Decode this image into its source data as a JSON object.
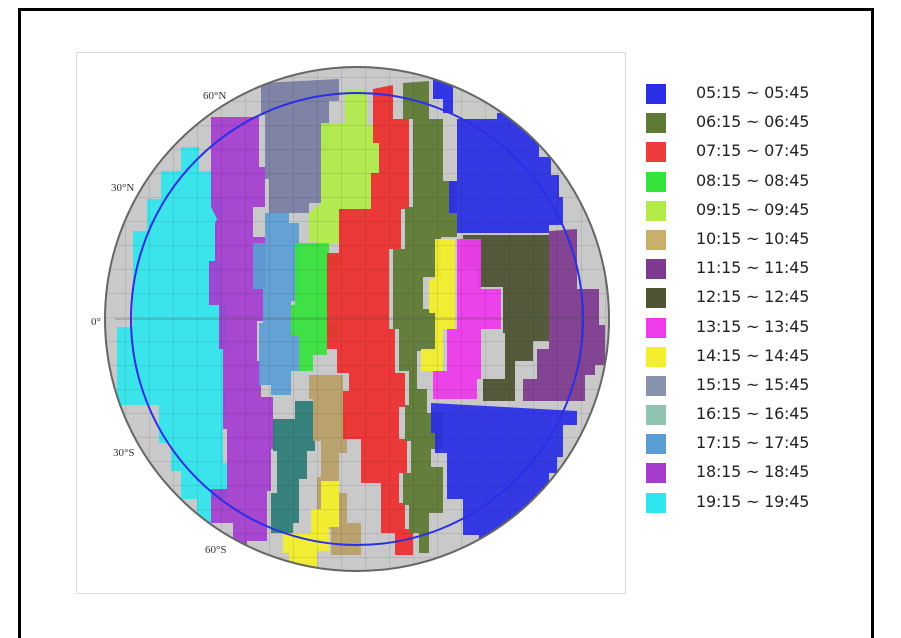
{
  "map": {
    "latitude_labels": [
      "60°N",
      "30°N",
      "0°",
      "30°S",
      "60°S"
    ]
  },
  "legend": [
    {
      "label": "05:15 ~ 05:45",
      "color": "#2a2ee6"
    },
    {
      "label": "06:15 ~ 06:45",
      "color": "#5f7a37"
    },
    {
      "label": "07:15 ~ 07:45",
      "color": "#ee3b3b"
    },
    {
      "label": "08:15 ~ 08:45",
      "color": "#36e33c"
    },
    {
      "label": "09:15 ~ 09:45",
      "color": "#b2ec4b"
    },
    {
      "label": "10:15 ~ 10:45",
      "color": "#c8b06a"
    },
    {
      "label": "11:15 ~ 11:45",
      "color": "#7d3a8f"
    },
    {
      "label": "12:15 ~ 12:45",
      "color": "#4e5434"
    },
    {
      "label": "13:15 ~ 13:45",
      "color": "#ee3bec"
    },
    {
      "label": "14:15 ~ 14:45",
      "color": "#f3ef2d"
    },
    {
      "label": "15:15 ~ 15:45",
      "color": "#8792ac"
    },
    {
      "label": "16:15 ~ 16:45",
      "color": "#8ec4b0"
    },
    {
      "label": "17:15 ~ 17:45",
      "color": "#5b9ed6"
    },
    {
      "label": "18:15 ~ 18:45",
      "color": "#a53ccf"
    },
    {
      "label": "19:15 ~ 19:45",
      "color": "#2fe6ee"
    }
  ]
}
